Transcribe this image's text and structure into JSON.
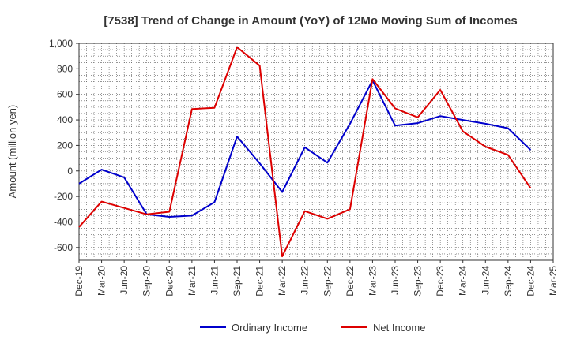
{
  "chart_data": {
    "type": "line",
    "title": "[7538]  Trend of Change in Amount (YoY) of 12Mo Moving Sum of Incomes",
    "xlabel": "",
    "ylabel": "Amount (million yen)",
    "ylim": [
      -700,
      1000
    ],
    "yticks": [
      -600,
      -400,
      -200,
      0,
      200,
      400,
      600,
      800,
      1000
    ],
    "ytick_labels": [
      "-600",
      "-400",
      "-200",
      "0",
      "200",
      "400",
      "600",
      "800",
      "1,000"
    ],
    "categories": [
      "Dec-19",
      "Mar-20",
      "Jun-20",
      "Sep-20",
      "Dec-20",
      "Mar-21",
      "Jun-21",
      "Sep-21",
      "Dec-21",
      "Mar-22",
      "Jun-22",
      "Sep-22",
      "Dec-22",
      "Mar-23",
      "Jun-23",
      "Sep-23",
      "Dec-23",
      "Mar-24",
      "Jun-24",
      "Sep-24",
      "Dec-24",
      "Mar-25"
    ],
    "grid": true,
    "legend": "bottom",
    "series": [
      {
        "name": "Ordinary Income",
        "color": "#0000cc",
        "values": [
          -100,
          10,
          -50,
          -340,
          -360,
          -350,
          -245,
          270,
          60,
          -165,
          185,
          65,
          370,
          710,
          355,
          375,
          430,
          400,
          370,
          335,
          165,
          null
        ]
      },
      {
        "name": "Net Income",
        "color": "#dd0000",
        "values": [
          -440,
          -240,
          -290,
          -340,
          -320,
          485,
          495,
          970,
          825,
          -670,
          -315,
          -375,
          -300,
          720,
          490,
          420,
          635,
          310,
          190,
          125,
          -135,
          null
        ]
      }
    ]
  }
}
